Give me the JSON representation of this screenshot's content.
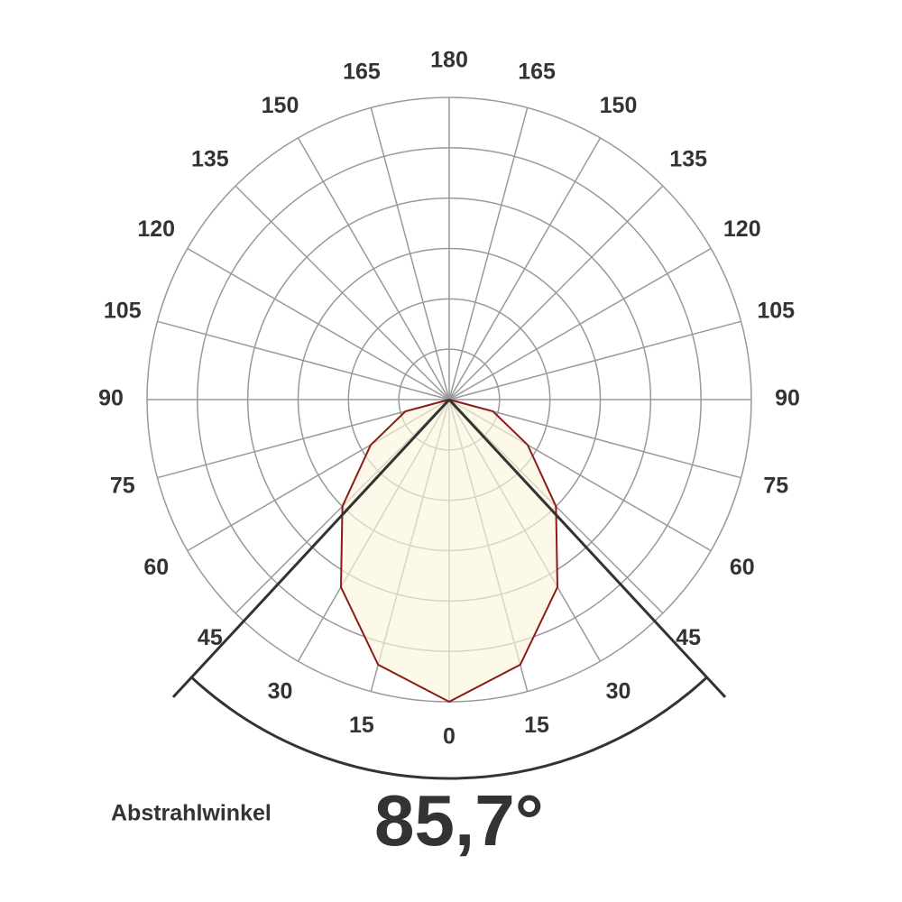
{
  "chart_data": {
    "type": "polar",
    "thetaticks": [
      0,
      15,
      30,
      45,
      60,
      75,
      90,
      105,
      120,
      135,
      150,
      165,
      180
    ],
    "rlim": [
      0,
      6
    ],
    "rticks": [
      1,
      2,
      3,
      4,
      5,
      6
    ],
    "x": [
      -90,
      -75,
      -60,
      -45,
      -30,
      -15,
      0,
      15,
      30,
      45,
      60,
      75,
      90
    ],
    "values": [
      0,
      0.9,
      1.8,
      3.0,
      4.3,
      5.45,
      6.0,
      5.45,
      4.3,
      3.0,
      1.8,
      0.9,
      0
    ],
    "color": "#8b1a1a",
    "fill": "#fbf6dc",
    "beam_angle_title": "Abstrahlwinkel",
    "beam_angle": 85.7,
    "beam_angle_label": "85,7°"
  }
}
